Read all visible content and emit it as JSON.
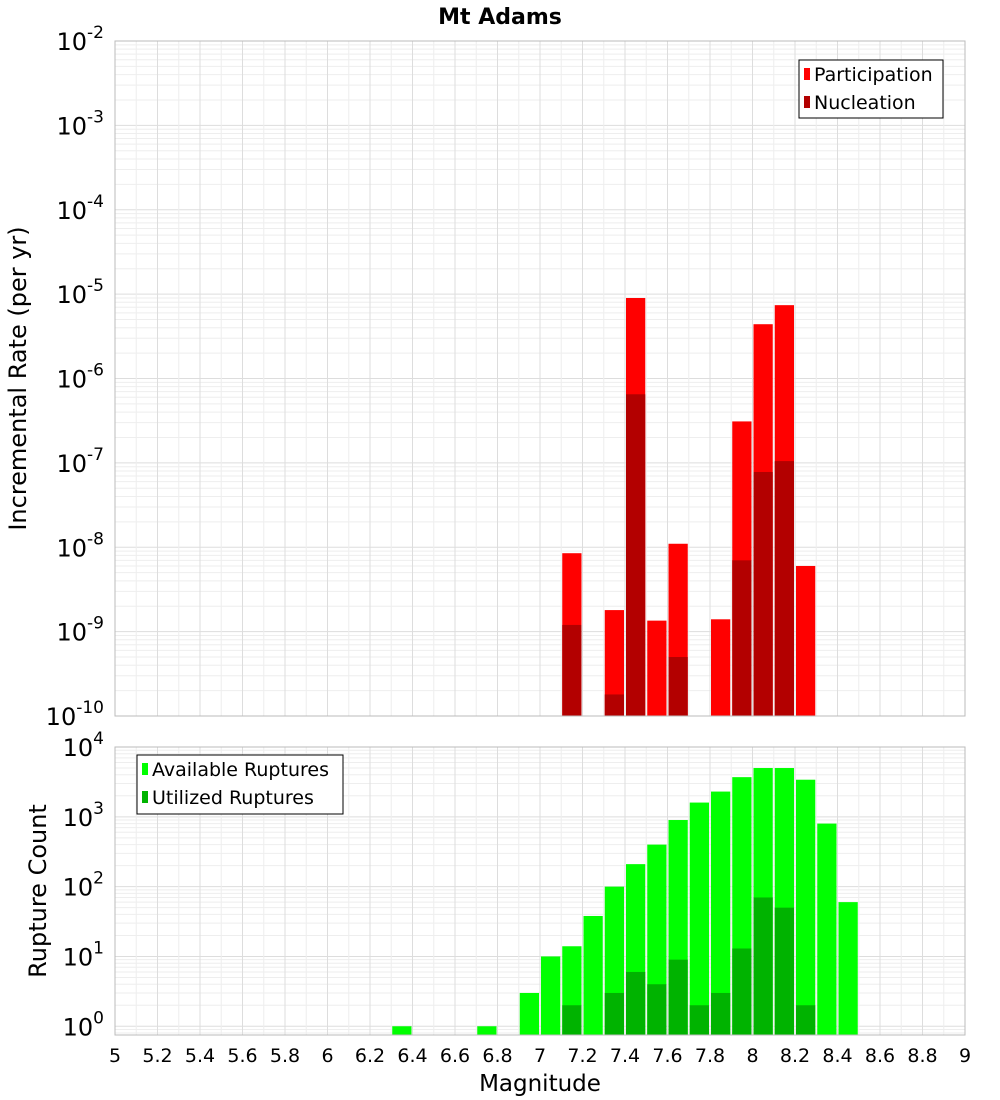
{
  "title": "Mt Adams",
  "chart_data": [
    {
      "type": "bar",
      "title": "Mt Adams",
      "xlabel": "",
      "ylabel": "Incremental Rate (per yr)",
      "yscale": "log",
      "xlim": [
        5,
        9
      ],
      "ylim": [
        1e-10,
        0.01
      ],
      "y_tick_exponents": [
        -10,
        -9,
        -8,
        -7,
        -6,
        -5,
        -4,
        -3,
        -2
      ],
      "y_tick_base": "10",
      "grid": true,
      "legend_position": "top-right",
      "bin_width": 0.1,
      "series": [
        {
          "name": "Participation",
          "color": "#ff0000",
          "points": [
            {
              "x": 7.15,
              "y": 8.5e-09
            },
            {
              "x": 7.35,
              "y": 1.8e-09
            },
            {
              "x": 7.45,
              "y": 9e-06
            },
            {
              "x": 7.55,
              "y": 1.35e-09
            },
            {
              "x": 7.65,
              "y": 1.1e-08
            },
            {
              "x": 7.85,
              "y": 1.4e-09
            },
            {
              "x": 7.95,
              "y": 3.1e-07
            },
            {
              "x": 8.05,
              "y": 4.4e-06
            },
            {
              "x": 8.15,
              "y": 7.4e-06
            },
            {
              "x": 8.25,
              "y": 6e-09
            }
          ]
        },
        {
          "name": "Nucleation",
          "color": "#b30000",
          "points": [
            {
              "x": 7.15,
              "y": 1.2e-09
            },
            {
              "x": 7.35,
              "y": 1.8e-10
            },
            {
              "x": 7.45,
              "y": 6.5e-07
            },
            {
              "x": 7.65,
              "y": 5e-10
            },
            {
              "x": 7.95,
              "y": 7e-09
            },
            {
              "x": 8.05,
              "y": 7.8e-08
            },
            {
              "x": 8.15,
              "y": 1.05e-07
            }
          ]
        }
      ]
    },
    {
      "type": "bar",
      "title": "",
      "xlabel": "Magnitude",
      "ylabel": "Rupture Count",
      "yscale": "log",
      "xlim": [
        5,
        9
      ],
      "ylim": [
        0.75,
        10000
      ],
      "x_ticks": [
        "5",
        "5.2",
        "5.4",
        "5.6",
        "5.8",
        "6",
        "6.2",
        "6.4",
        "6.6",
        "6.8",
        "7",
        "7.2",
        "7.4",
        "7.6",
        "7.8",
        "8",
        "8.2",
        "8.4",
        "8.6",
        "8.8",
        "9"
      ],
      "y_tick_exponents": [
        0,
        1,
        2,
        3,
        4
      ],
      "y_tick_base": "10",
      "grid": true,
      "legend_position": "top-left",
      "bin_width": 0.1,
      "series": [
        {
          "name": "Available Ruptures",
          "color": "#00ff00",
          "points": [
            {
              "x": 6.35,
              "y": 1
            },
            {
              "x": 6.75,
              "y": 1
            },
            {
              "x": 6.95,
              "y": 3
            },
            {
              "x": 7.05,
              "y": 10
            },
            {
              "x": 7.15,
              "y": 14
            },
            {
              "x": 7.25,
              "y": 38
            },
            {
              "x": 7.35,
              "y": 100
            },
            {
              "x": 7.45,
              "y": 210
            },
            {
              "x": 7.55,
              "y": 400
            },
            {
              "x": 7.65,
              "y": 900
            },
            {
              "x": 7.75,
              "y": 1600
            },
            {
              "x": 7.85,
              "y": 2300
            },
            {
              "x": 7.95,
              "y": 3700
            },
            {
              "x": 8.05,
              "y": 5000
            },
            {
              "x": 8.15,
              "y": 5000
            },
            {
              "x": 8.25,
              "y": 3400
            },
            {
              "x": 8.35,
              "y": 800
            },
            {
              "x": 8.45,
              "y": 60
            }
          ]
        },
        {
          "name": "Utilized Ruptures",
          "color": "#00b300",
          "points": [
            {
              "x": 7.15,
              "y": 2
            },
            {
              "x": 7.35,
              "y": 3
            },
            {
              "x": 7.45,
              "y": 6
            },
            {
              "x": 7.55,
              "y": 4
            },
            {
              "x": 7.65,
              "y": 9
            },
            {
              "x": 7.75,
              "y": 2
            },
            {
              "x": 7.85,
              "y": 3
            },
            {
              "x": 7.95,
              "y": 13
            },
            {
              "x": 8.05,
              "y": 70
            },
            {
              "x": 8.15,
              "y": 50
            },
            {
              "x": 8.25,
              "y": 2
            }
          ]
        }
      ]
    }
  ]
}
